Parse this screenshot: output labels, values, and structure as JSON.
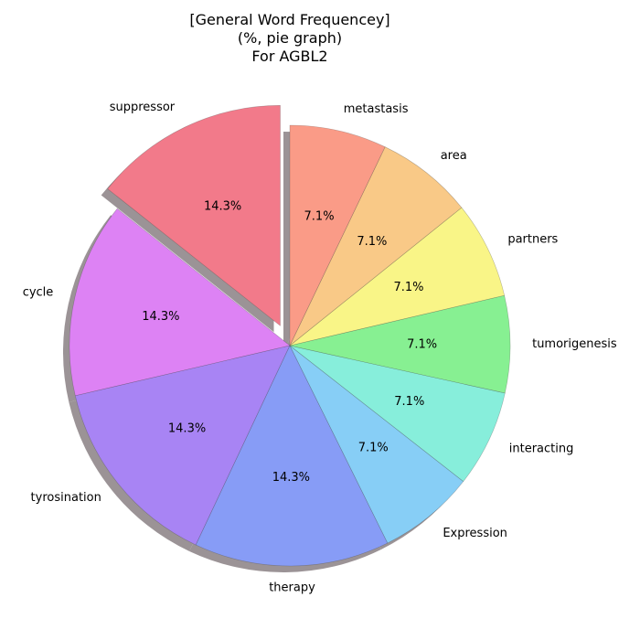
{
  "chart_data": {
    "type": "pie",
    "title": "[General Word Frequencey]",
    "subtitle": "(%, pie graph)",
    "subtitle2": "For AGBL2",
    "slices": [
      {
        "label": "suppressor",
        "value": 14.3,
        "pct_label": "14.3%",
        "color": "#f27a8a",
        "exploded": true
      },
      {
        "label": "cycle",
        "value": 14.3,
        "pct_label": "14.3%",
        "color": "#dd82f4",
        "exploded": false
      },
      {
        "label": "tyrosination",
        "value": 14.3,
        "pct_label": "14.3%",
        "color": "#a884f4",
        "exploded": false
      },
      {
        "label": "therapy",
        "value": 14.3,
        "pct_label": "14.3%",
        "color": "#879cf6",
        "exploded": false
      },
      {
        "label": "Expression",
        "value": 7.1,
        "pct_label": "7.1%",
        "color": "#87cef6",
        "exploded": false
      },
      {
        "label": "interacting",
        "value": 7.1,
        "pct_label": "7.1%",
        "color": "#87eedb",
        "exploded": false
      },
      {
        "label": "tumorigenesis",
        "value": 7.1,
        "pct_label": "7.1%",
        "color": "#87f092",
        "exploded": false
      },
      {
        "label": "partners",
        "value": 7.1,
        "pct_label": "7.1%",
        "color": "#f9f587",
        "exploded": false
      },
      {
        "label": "area",
        "value": 7.1,
        "pct_label": "7.1%",
        "color": "#f9c987",
        "exploded": false
      },
      {
        "label": "metastasis",
        "value": 7.1,
        "pct_label": "7.1%",
        "color": "#fa9b87",
        "exploded": false
      }
    ],
    "start_angle_deg": 90,
    "direction": "counterclockwise",
    "shadow": true
  }
}
